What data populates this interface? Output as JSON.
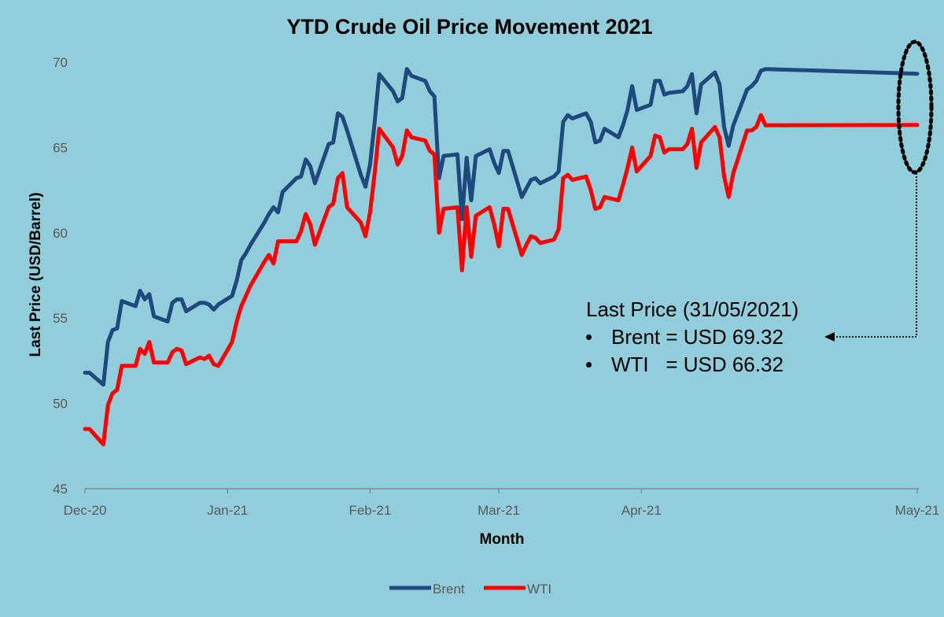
{
  "chart_data": {
    "type": "line",
    "title": "YTD Crude Oil Price Movement 2021",
    "xlabel": "Month",
    "ylabel": "Last Price (USD/Barrel)",
    "ylim": [
      45,
      70
    ],
    "yticks": [
      45,
      50,
      55,
      60,
      65,
      70
    ],
    "x_range": [
      "2020-12-01",
      "2021-05-31"
    ],
    "x_ticks": [
      {
        "label": "Dec-20",
        "date": "2020-12-01"
      },
      {
        "label": "Jan-21",
        "date": "2021-01-01"
      },
      {
        "label": "Feb-21",
        "date": "2021-02-01"
      },
      {
        "label": "Mar-21",
        "date": "2021-03-01"
      },
      {
        "label": "Apr-21",
        "date": "2021-04-01"
      },
      {
        "label": "May-21",
        "date": "2021-05-31"
      }
    ],
    "legend": "bottom-center",
    "grid": false,
    "series": [
      {
        "name": "Brent",
        "color": "#1F497D",
        "points": [
          [
            "2020-12-01",
            51.8
          ],
          [
            "2020-12-02",
            51.8
          ],
          [
            "2020-12-05",
            51.1
          ],
          [
            "2020-12-06",
            53.6
          ],
          [
            "2020-12-07",
            54.3
          ],
          [
            "2020-12-08",
            54.4
          ],
          [
            "2020-12-09",
            56.0
          ],
          [
            "2020-12-12",
            55.7
          ],
          [
            "2020-12-13",
            56.6
          ],
          [
            "2020-12-14",
            56.1
          ],
          [
            "2020-12-15",
            56.4
          ],
          [
            "2020-12-16",
            55.1
          ],
          [
            "2020-12-19",
            54.8
          ],
          [
            "2020-12-20",
            55.9
          ],
          [
            "2020-12-21",
            56.1
          ],
          [
            "2020-12-22",
            56.1
          ],
          [
            "2020-12-23",
            55.4
          ],
          [
            "2020-12-26",
            55.9
          ],
          [
            "2020-12-27",
            55.9
          ],
          [
            "2020-12-28",
            55.8
          ],
          [
            "2020-12-29",
            55.5
          ],
          [
            "2020-12-30",
            55.8
          ],
          [
            "2021-01-02",
            56.3
          ],
          [
            "2021-01-03",
            57.2
          ],
          [
            "2021-01-04",
            58.4
          ],
          [
            "2021-01-05",
            58.8
          ],
          [
            "2021-01-06",
            59.3
          ],
          [
            "2021-01-09",
            60.6
          ],
          [
            "2021-01-10",
            61.1
          ],
          [
            "2021-01-11",
            61.5
          ],
          [
            "2021-01-12",
            61.2
          ],
          [
            "2021-01-13",
            62.4
          ],
          [
            "2021-01-16",
            63.2
          ],
          [
            "2021-01-17",
            63.3
          ],
          [
            "2021-01-18",
            64.3
          ],
          [
            "2021-01-19",
            63.9
          ],
          [
            "2021-01-20",
            62.9
          ],
          [
            "2021-01-23",
            65.2
          ],
          [
            "2021-01-24",
            65.3
          ],
          [
            "2021-01-25",
            67.0
          ],
          [
            "2021-01-26",
            66.8
          ],
          [
            "2021-01-27",
            66.0
          ],
          [
            "2021-01-30",
            63.4
          ],
          [
            "2021-01-31",
            62.7
          ],
          [
            "2021-02-01",
            64.0
          ],
          [
            "2021-02-02",
            66.5
          ],
          [
            "2021-02-03",
            69.3
          ],
          [
            "2021-02-06",
            68.3
          ],
          [
            "2021-02-07",
            67.7
          ],
          [
            "2021-02-08",
            67.9
          ],
          [
            "2021-02-09",
            69.6
          ],
          [
            "2021-02-10",
            69.2
          ],
          [
            "2021-02-13",
            68.9
          ],
          [
            "2021-02-14",
            68.3
          ],
          [
            "2021-02-15",
            68.0
          ],
          [
            "2021-02-16",
            63.2
          ],
          [
            "2021-02-17",
            64.5
          ],
          [
            "2021-02-20",
            64.6
          ],
          [
            "2021-02-21",
            60.8
          ],
          [
            "2021-02-22",
            64.4
          ],
          [
            "2021-02-23",
            61.9
          ],
          [
            "2021-02-24",
            64.5
          ],
          [
            "2021-02-27",
            64.9
          ],
          [
            "2021-02-28",
            64.1
          ],
          [
            "2021-03-01",
            63.5
          ],
          [
            "2021-03-02",
            64.8
          ],
          [
            "2021-03-03",
            64.8
          ],
          [
            "2021-03-06",
            62.1
          ],
          [
            "2021-03-07",
            62.6
          ],
          [
            "2021-03-08",
            63.1
          ],
          [
            "2021-03-09",
            63.2
          ],
          [
            "2021-03-10",
            62.9
          ],
          [
            "2021-03-13",
            63.3
          ],
          [
            "2021-03-14",
            63.6
          ],
          [
            "2021-03-15",
            66.5
          ],
          [
            "2021-03-16",
            66.9
          ],
          [
            "2021-03-17",
            66.7
          ],
          [
            "2021-03-20",
            67.0
          ],
          [
            "2021-03-21",
            66.5
          ],
          [
            "2021-03-22",
            65.3
          ],
          [
            "2021-03-23",
            65.4
          ],
          [
            "2021-03-24",
            66.1
          ],
          [
            "2021-03-27",
            65.6
          ],
          [
            "2021-03-28",
            66.3
          ],
          [
            "2021-03-29",
            67.2
          ],
          [
            "2021-03-30",
            68.6
          ],
          [
            "2021-03-31",
            67.2
          ],
          [
            "2021-04-03",
            67.5
          ],
          [
            "2021-04-04",
            68.9
          ],
          [
            "2021-04-05",
            68.9
          ],
          [
            "2021-04-06",
            68.1
          ],
          [
            "2021-04-07",
            68.2
          ],
          [
            "2021-04-10",
            68.3
          ],
          [
            "2021-04-11",
            68.6
          ],
          [
            "2021-04-12",
            69.3
          ],
          [
            "2021-04-13",
            67.0
          ],
          [
            "2021-04-14",
            68.7
          ],
          [
            "2021-04-17",
            69.4
          ],
          [
            "2021-04-18",
            68.7
          ],
          [
            "2021-04-19",
            66.2
          ],
          [
            "2021-04-20",
            65.1
          ],
          [
            "2021-04-21",
            66.3
          ],
          [
            "2021-04-24",
            68.4
          ],
          [
            "2021-04-25",
            68.6
          ],
          [
            "2021-04-26",
            68.9
          ],
          [
            "2021-04-27",
            69.5
          ],
          [
            "2021-04-28",
            69.6
          ],
          [
            "2021-05-31",
            69.32
          ]
        ]
      },
      {
        "name": "WTI",
        "color": "#FF0000",
        "points": [
          [
            "2020-12-01",
            48.5
          ],
          [
            "2020-12-02",
            48.5
          ],
          [
            "2020-12-05",
            47.6
          ],
          [
            "2020-12-06",
            49.9
          ],
          [
            "2020-12-07",
            50.6
          ],
          [
            "2020-12-08",
            50.8
          ],
          [
            "2020-12-09",
            52.2
          ],
          [
            "2020-12-12",
            52.2
          ],
          [
            "2020-12-13",
            53.2
          ],
          [
            "2020-12-14",
            52.9
          ],
          [
            "2020-12-15",
            53.6
          ],
          [
            "2020-12-16",
            52.4
          ],
          [
            "2020-12-19",
            52.4
          ],
          [
            "2020-12-20",
            53.0
          ],
          [
            "2020-12-21",
            53.2
          ],
          [
            "2020-12-22",
            53.1
          ],
          [
            "2020-12-23",
            52.3
          ],
          [
            "2020-12-26",
            52.7
          ],
          [
            "2020-12-27",
            52.6
          ],
          [
            "2020-12-28",
            52.8
          ],
          [
            "2020-12-29",
            52.3
          ],
          [
            "2020-12-30",
            52.2
          ],
          [
            "2021-01-02",
            53.6
          ],
          [
            "2021-01-03",
            54.8
          ],
          [
            "2021-01-04",
            55.7
          ],
          [
            "2021-01-05",
            56.3
          ],
          [
            "2021-01-06",
            56.9
          ],
          [
            "2021-01-09",
            58.3
          ],
          [
            "2021-01-10",
            58.7
          ],
          [
            "2021-01-11",
            58.2
          ],
          [
            "2021-01-12",
            59.5
          ],
          [
            "2021-01-13",
            59.5
          ],
          [
            "2021-01-16",
            59.5
          ],
          [
            "2021-01-17",
            60.1
          ],
          [
            "2021-01-18",
            61.1
          ],
          [
            "2021-01-19",
            60.5
          ],
          [
            "2021-01-20",
            59.3
          ],
          [
            "2021-01-23",
            61.5
          ],
          [
            "2021-01-24",
            61.7
          ],
          [
            "2021-01-25",
            63.2
          ],
          [
            "2021-01-26",
            63.5
          ],
          [
            "2021-01-27",
            61.5
          ],
          [
            "2021-01-30",
            60.6
          ],
          [
            "2021-01-31",
            59.8
          ],
          [
            "2021-02-01",
            61.2
          ],
          [
            "2021-02-02",
            63.5
          ],
          [
            "2021-02-03",
            66.1
          ],
          [
            "2021-02-06",
            65.0
          ],
          [
            "2021-02-07",
            64.0
          ],
          [
            "2021-02-08",
            64.5
          ],
          [
            "2021-02-09",
            66.0
          ],
          [
            "2021-02-10",
            65.6
          ],
          [
            "2021-02-13",
            65.4
          ],
          [
            "2021-02-14",
            64.8
          ],
          [
            "2021-02-15",
            64.6
          ],
          [
            "2021-02-16",
            60.0
          ],
          [
            "2021-02-17",
            61.4
          ],
          [
            "2021-02-20",
            61.5
          ],
          [
            "2021-02-21",
            57.8
          ],
          [
            "2021-02-22",
            61.5
          ],
          [
            "2021-02-23",
            58.6
          ],
          [
            "2021-02-24",
            61.0
          ],
          [
            "2021-02-27",
            61.5
          ],
          [
            "2021-02-28",
            60.5
          ],
          [
            "2021-03-01",
            59.2
          ],
          [
            "2021-03-02",
            61.4
          ],
          [
            "2021-03-03",
            61.4
          ],
          [
            "2021-03-06",
            58.7
          ],
          [
            "2021-03-07",
            59.3
          ],
          [
            "2021-03-08",
            59.8
          ],
          [
            "2021-03-09",
            59.7
          ],
          [
            "2021-03-10",
            59.4
          ],
          [
            "2021-03-13",
            59.6
          ],
          [
            "2021-03-14",
            60.2
          ],
          [
            "2021-03-15",
            63.2
          ],
          [
            "2021-03-16",
            63.4
          ],
          [
            "2021-03-17",
            63.1
          ],
          [
            "2021-03-20",
            63.3
          ],
          [
            "2021-03-21",
            62.5
          ],
          [
            "2021-03-22",
            61.4
          ],
          [
            "2021-03-23",
            61.5
          ],
          [
            "2021-03-24",
            62.1
          ],
          [
            "2021-03-27",
            61.9
          ],
          [
            "2021-03-28",
            62.8
          ],
          [
            "2021-03-29",
            63.8
          ],
          [
            "2021-03-30",
            65.0
          ],
          [
            "2021-03-31",
            63.6
          ],
          [
            "2021-04-03",
            64.5
          ],
          [
            "2021-04-04",
            65.7
          ],
          [
            "2021-04-05",
            65.6
          ],
          [
            "2021-04-06",
            64.7
          ],
          [
            "2021-04-07",
            64.9
          ],
          [
            "2021-04-10",
            64.9
          ],
          [
            "2021-04-11",
            65.2
          ],
          [
            "2021-04-12",
            66.1
          ],
          [
            "2021-04-13",
            63.8
          ],
          [
            "2021-04-14",
            65.3
          ],
          [
            "2021-04-17",
            66.2
          ],
          [
            "2021-04-18",
            65.6
          ],
          [
            "2021-04-19",
            63.3
          ],
          [
            "2021-04-20",
            62.1
          ],
          [
            "2021-04-21",
            63.5
          ],
          [
            "2021-04-24",
            66.0
          ],
          [
            "2021-04-25",
            66.0
          ],
          [
            "2021-04-26",
            66.2
          ],
          [
            "2021-04-27",
            66.9
          ],
          [
            "2021-04-28",
            66.3
          ],
          [
            "2021-05-31",
            66.32
          ]
        ]
      }
    ],
    "annotation": {
      "heading": "Last Price (31/05/2021)",
      "bullet": "•",
      "brent_line": "Brent = USD 69.32",
      "wti_line": "WTI   = USD 66.32"
    }
  }
}
